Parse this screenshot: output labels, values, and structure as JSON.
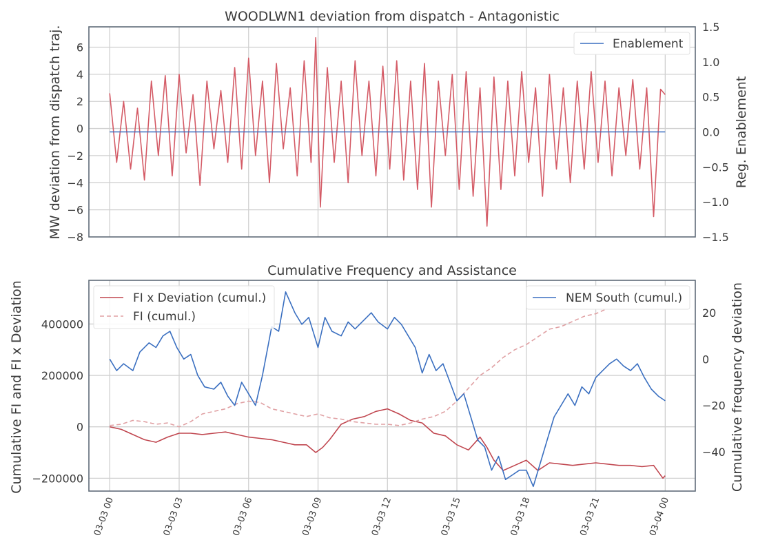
{
  "chart_data": [
    {
      "type": "line",
      "title": "WOODLWN1 deviation from dispatch - Antagonistic",
      "ylabel": "MW deviation from dispatch traj.",
      "ylabel_right": "Reg. Enablement",
      "ylim": [
        -8,
        7.5
      ],
      "yticks": [
        -8,
        -6,
        -4,
        -2,
        0,
        2,
        4,
        6
      ],
      "ytick_labels": [
        "−8",
        "−6",
        "−4",
        "−2",
        "0",
        "2",
        "4",
        "6"
      ],
      "ylim_right": [
        -1.5,
        1.5
      ],
      "yticks_right": [
        -1.5,
        -1.0,
        -0.5,
        0.0,
        0.5,
        1.0,
        1.5
      ],
      "ytick_labels_right": [
        "−1.5",
        "−1.0",
        "−0.5",
        "0.0",
        "0.5",
        "1.0",
        "1.5"
      ],
      "xlim_hours": [
        0,
        24
      ],
      "grid": true,
      "legend": {
        "placement": "top-right",
        "entries": [
          "Enablement"
        ]
      },
      "series": [
        {
          "name": "",
          "axis": "left",
          "color": "#d45b66",
          "x": [
            0,
            0.3,
            0.6,
            0.9,
            1.2,
            1.5,
            1.8,
            2.1,
            2.4,
            2.7,
            3.0,
            3.3,
            3.6,
            3.9,
            4.2,
            4.5,
            4.8,
            5.1,
            5.4,
            5.7,
            6.0,
            6.3,
            6.6,
            6.9,
            7.2,
            7.5,
            7.8,
            8.1,
            8.4,
            8.7,
            8.9,
            9.1,
            9.4,
            9.7,
            10.0,
            10.3,
            10.6,
            10.9,
            11.2,
            11.5,
            11.8,
            12.1,
            12.4,
            12.7,
            13.0,
            13.3,
            13.6,
            13.9,
            14.2,
            14.5,
            14.8,
            15.1,
            15.4,
            15.7,
            16.0,
            16.3,
            16.6,
            16.9,
            17.2,
            17.5,
            17.8,
            18.1,
            18.4,
            18.7,
            19.0,
            19.3,
            19.6,
            19.9,
            20.2,
            20.5,
            20.8,
            21.1,
            21.4,
            21.7,
            22.0,
            22.3,
            22.6,
            22.9,
            23.2,
            23.5,
            23.8,
            24.0
          ],
          "y": [
            2.6,
            -2.5,
            2.0,
            -3.0,
            1.5,
            -3.8,
            3.5,
            -2.0,
            3.9,
            -3.5,
            4.0,
            -1.8,
            2.5,
            -4.2,
            3.5,
            -1.5,
            2.8,
            -2.5,
            4.5,
            -3.0,
            5.2,
            -2.0,
            3.5,
            -4.0,
            4.8,
            -1.5,
            3.0,
            -3.5,
            5.0,
            -2.5,
            6.7,
            -5.8,
            4.5,
            -2.5,
            3.5,
            -4.0,
            5.0,
            -2.0,
            3.5,
            -3.5,
            4.6,
            -3.0,
            5.0,
            -3.8,
            3.5,
            -4.5,
            4.8,
            -5.8,
            3.5,
            -2.0,
            4.0,
            -4.5,
            4.2,
            -5.0,
            3.0,
            -7.2,
            3.8,
            -4.5,
            3.5,
            -3.5,
            4.2,
            -2.5,
            3.0,
            -5.0,
            4.0,
            -3.0,
            3.0,
            -4.0,
            3.5,
            -3.0,
            4.2,
            -2.5,
            3.5,
            -3.5,
            3.0,
            -2.0,
            3.6,
            -3.0,
            3.0,
            -6.5,
            2.9,
            2.5
          ]
        },
        {
          "name": "Enablement",
          "axis": "right",
          "color": "#3a6fc0",
          "x": [
            0,
            24
          ],
          "y": [
            0.0,
            0.0
          ]
        }
      ]
    },
    {
      "type": "line",
      "title": "Cumulative Frequency and Assistance",
      "xlabel": "",
      "ylabel": "Cumulative FI and FI x Deviation",
      "ylabel_right": "Cumulative frequency deviation",
      "ylim": [
        -250000,
        570000
      ],
      "yticks": [
        -200000,
        0,
        200000,
        400000
      ],
      "ytick_labels": [
        "−200000",
        "0",
        "200000",
        "400000"
      ],
      "ylim_right": [
        -57,
        34
      ],
      "yticks_right": [
        -40,
        -20,
        0,
        20
      ],
      "ytick_labels_right": [
        "−40",
        "−20",
        "0",
        "20"
      ],
      "xlim_hours": [
        -0.9,
        25.3
      ],
      "xticks_hours": [
        0,
        3,
        6,
        9,
        12,
        15,
        18,
        21,
        24
      ],
      "xtick_labels": [
        "03-03 00",
        "03-03 03",
        "03-03 06",
        "03-03 09",
        "03-03 12",
        "03-03 15",
        "03-03 18",
        "03-03 21",
        "03-04 00"
      ],
      "grid": true,
      "legend_left": {
        "placement": "top-left",
        "entries": [
          "FI x Deviation (cumul.)",
          "FI (cumul.)"
        ]
      },
      "legend_right": {
        "placement": "top-right",
        "entries": [
          "NEM South (cumul.)"
        ]
      },
      "series": [
        {
          "name": "FI x Deviation (cumul.)",
          "axis": "left",
          "color": "#c0464f",
          "dash": "solid",
          "x": [
            0,
            0.5,
            1.0,
            1.5,
            2.0,
            2.5,
            3.0,
            3.5,
            4.0,
            4.5,
            5.0,
            5.5,
            6.0,
            6.5,
            7.0,
            7.5,
            8.0,
            8.5,
            8.9,
            9.2,
            9.5,
            10.0,
            10.5,
            11.0,
            11.5,
            12.0,
            12.5,
            13.0,
            13.5,
            14.0,
            14.5,
            15.0,
            15.5,
            16.0,
            16.3,
            16.6,
            17.0,
            17.5,
            18.0,
            18.5,
            19.0,
            19.5,
            20.0,
            20.5,
            21.0,
            21.5,
            22.0,
            22.5,
            23.0,
            23.5,
            23.9,
            24.0
          ],
          "y": [
            0,
            -10000,
            -30000,
            -50000,
            -60000,
            -40000,
            -25000,
            -25000,
            -30000,
            -25000,
            -20000,
            -30000,
            -40000,
            -45000,
            -50000,
            -60000,
            -70000,
            -70000,
            -100000,
            -80000,
            -50000,
            10000,
            30000,
            40000,
            60000,
            70000,
            50000,
            25000,
            15000,
            -25000,
            -35000,
            -70000,
            -90000,
            -40000,
            -80000,
            -130000,
            -170000,
            -150000,
            -130000,
            -170000,
            -140000,
            -145000,
            -150000,
            -145000,
            -140000,
            -145000,
            -150000,
            -150000,
            -155000,
            -150000,
            -200000,
            -190000
          ]
        },
        {
          "name": "FI (cumul.)",
          "axis": "left",
          "color": "#e0a0a3",
          "dash": "dashed",
          "x": [
            0,
            0.5,
            1.0,
            1.5,
            2.0,
            2.5,
            3.0,
            3.5,
            4.0,
            4.5,
            5.0,
            5.5,
            6.0,
            6.5,
            7.0,
            7.5,
            8.0,
            8.5,
            9.0,
            9.5,
            10.0,
            10.5,
            11.0,
            11.5,
            12.0,
            12.5,
            13.0,
            13.5,
            14.0,
            14.5,
            15.0,
            15.5,
            16.0,
            16.5,
            17.0,
            17.5,
            18.0,
            18.5,
            19.0,
            19.5,
            20.0,
            20.5,
            21.0,
            21.5,
            22.0,
            22.5,
            23.0,
            23.5
          ],
          "y": [
            5000,
            10000,
            25000,
            20000,
            10000,
            15000,
            0,
            20000,
            50000,
            60000,
            70000,
            90000,
            100000,
            95000,
            70000,
            60000,
            50000,
            40000,
            50000,
            35000,
            30000,
            20000,
            15000,
            10000,
            10000,
            5000,
            15000,
            30000,
            40000,
            60000,
            100000,
            150000,
            200000,
            230000,
            270000,
            300000,
            320000,
            350000,
            380000,
            390000,
            410000,
            430000,
            440000,
            460000,
            470000,
            480000,
            500000,
            520000
          ]
        },
        {
          "name": "NEM South (cumul.)",
          "axis": "right",
          "color": "#3a6fc0",
          "dash": "solid",
          "x": [
            0,
            0.3,
            0.6,
            1.0,
            1.3,
            1.7,
            2.0,
            2.3,
            2.6,
            2.9,
            3.2,
            3.5,
            3.8,
            4.1,
            4.5,
            4.8,
            5.1,
            5.4,
            5.7,
            6.0,
            6.3,
            6.6,
            7.0,
            7.3,
            7.6,
            8.0,
            8.3,
            8.6,
            9.0,
            9.3,
            9.6,
            10.0,
            10.3,
            10.6,
            11.0,
            11.3,
            11.6,
            12.0,
            12.3,
            12.6,
            12.9,
            13.2,
            13.5,
            13.8,
            14.1,
            14.4,
            14.7,
            15.0,
            15.3,
            15.6,
            15.9,
            16.2,
            16.5,
            16.8,
            17.1,
            17.4,
            17.7,
            18.0,
            18.3,
            18.6,
            18.9,
            19.2,
            19.5,
            19.8,
            20.1,
            20.4,
            20.7,
            21.0,
            21.3,
            21.6,
            21.9,
            22.2,
            22.5,
            22.8,
            23.1,
            23.4,
            23.7,
            24.0
          ],
          "y": [
            0,
            -5,
            -2,
            -5,
            3,
            7,
            5,
            10,
            12,
            5,
            0,
            2,
            -7,
            -12,
            -13,
            -10,
            -16,
            -20,
            -10,
            -15,
            -20,
            -7,
            14,
            12,
            29,
            20,
            15,
            18,
            5,
            18,
            12,
            10,
            16,
            13,
            17,
            20,
            16,
            13,
            18,
            15,
            10,
            5,
            -6,
            2,
            -5,
            -2,
            -10,
            -18,
            -15,
            -25,
            -35,
            -38,
            -48,
            -42,
            -52,
            -50,
            -48,
            -48,
            -55,
            -45,
            -35,
            -25,
            -20,
            -15,
            -20,
            -12,
            -15,
            -8,
            -5,
            -2,
            0,
            -3,
            -5,
            -2,
            -8,
            -13,
            -16,
            -18
          ]
        }
      ]
    }
  ]
}
